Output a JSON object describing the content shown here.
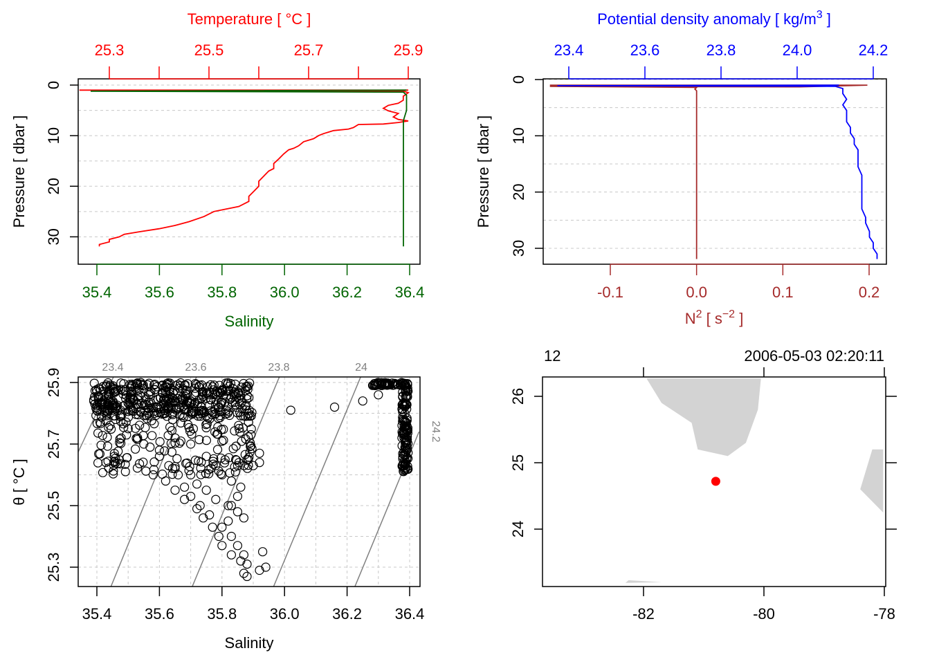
{
  "colors": {
    "temperature": "#ff0000",
    "salinity": "#006400",
    "density": "#0000ff",
    "n2": "#a52a2a",
    "axis": "#000000",
    "grid": "#c8c8c8",
    "isopycnal": "#808080",
    "land": "#d3d3d3",
    "station": "#ff0000"
  },
  "chart_data": [
    {
      "type": "line",
      "id": "ts-profile",
      "top_axis_label": "Temperature [ °C ]",
      "top_ticks": [
        "25.3",
        "25.5",
        "25.7",
        "25.9"
      ],
      "top_ticks_values": [
        25.3,
        25.5,
        25.7,
        25.9
      ],
      "top_range": [
        25.22,
        25.91
      ],
      "bottom_axis_label": "Salinity",
      "bottom_ticks": [
        "35.4",
        "35.6",
        "35.8",
        "36.0",
        "36.2",
        "36.4"
      ],
      "bottom_ticks_values": [
        35.4,
        35.6,
        35.8,
        36.0,
        36.2,
        36.4
      ],
      "bottom_range": [
        35.34,
        36.42
      ],
      "ylabel": "Pressure [ dbar ]",
      "y_ticks": [
        "0",
        "10",
        "20",
        "30"
      ],
      "y_ticks_values": [
        0,
        10,
        20,
        30
      ],
      "ylim": [
        33.5,
        0
      ],
      "grid": true,
      "series": [
        {
          "color_key": "temperature",
          "points": [
            [
              25.9,
              1.0
            ],
            [
              25.9,
              1.0
            ],
            [
              25.24,
              1.0
            ],
            [
              25.89,
              1.2
            ],
            [
              25.9,
              1.5
            ],
            [
              25.89,
              2.2
            ],
            [
              25.89,
              3.0
            ],
            [
              25.88,
              3.6
            ],
            [
              25.86,
              4.0
            ],
            [
              25.85,
              4.6
            ],
            [
              25.86,
              5.1
            ],
            [
              25.88,
              5.6
            ],
            [
              25.87,
              6.3
            ],
            [
              25.88,
              6.8
            ],
            [
              25.9,
              7.1
            ],
            [
              25.88,
              7.4
            ],
            [
              25.85,
              7.7
            ],
            [
              25.8,
              7.8
            ],
            [
              25.79,
              8.4
            ],
            [
              25.78,
              8.7
            ],
            [
              25.75,
              9.0
            ],
            [
              25.74,
              9.3
            ],
            [
              25.73,
              9.6
            ],
            [
              25.72,
              10.0
            ],
            [
              25.71,
              10.6
            ],
            [
              25.69,
              11.2
            ],
            [
              25.68,
              12.0
            ],
            [
              25.67,
              12.5
            ],
            [
              25.66,
              12.8
            ],
            [
              25.65,
              13.6
            ],
            [
              25.64,
              14.6
            ],
            [
              25.63,
              15.5
            ],
            [
              25.63,
              16.5
            ],
            [
              25.62,
              17.0
            ],
            [
              25.61,
              18.0
            ],
            [
              25.6,
              19.0
            ],
            [
              25.6,
              20.0
            ],
            [
              25.59,
              21.0
            ],
            [
              25.58,
              22.0
            ],
            [
              25.58,
              23.0
            ],
            [
              25.56,
              24.0
            ],
            [
              25.53,
              24.6
            ],
            [
              25.51,
              25.0
            ],
            [
              25.49,
              26.0
            ],
            [
              25.46,
              27.0
            ],
            [
              25.43,
              27.8
            ],
            [
              25.4,
              28.4
            ],
            [
              25.36,
              29.0
            ],
            [
              25.33,
              29.5
            ],
            [
              25.32,
              30.0
            ],
            [
              25.3,
              30.5
            ],
            [
              25.3,
              31.0
            ],
            [
              25.28,
              31.5
            ],
            [
              25.28,
              31.9
            ]
          ]
        },
        {
          "color_key": "salinity",
          "points": [
            [
              36.39,
              1.0
            ],
            [
              36.38,
              1.0
            ],
            [
              35.38,
              1.2
            ],
            [
              36.38,
              1.4
            ],
            [
              36.39,
              2.0
            ],
            [
              36.39,
              3.0
            ],
            [
              36.39,
              5.0
            ],
            [
              36.38,
              7.0
            ],
            [
              36.38,
              10.0
            ],
            [
              36.38,
              15.0
            ],
            [
              36.38,
              20.0
            ],
            [
              36.38,
              25.0
            ],
            [
              36.38,
              30.0
            ],
            [
              36.38,
              31.9
            ]
          ]
        }
      ]
    },
    {
      "type": "line",
      "id": "density-n2-profile",
      "top_axis_label": "Potential density anomaly [ kg/m",
      "top_axis_label_sup": "3",
      "top_axis_label_end": " ]",
      "top_ticks": [
        "23.4",
        "23.6",
        "23.8",
        "24.0",
        "24.2"
      ],
      "top_ticks_values": [
        23.4,
        23.6,
        23.8,
        24.0,
        24.2
      ],
      "top_range": [
        23.36,
        24.21
      ],
      "bottom_axis_label": "N",
      "bottom_axis_label_sup": "2",
      "bottom_axis_label_mid": " [ s",
      "bottom_axis_label_sup2": "−2",
      "bottom_axis_label_end": " ]",
      "bottom_ticks": [
        "-0.1",
        "0.0",
        "0.1",
        "0.2"
      ],
      "bottom_ticks_values": [
        -0.1,
        0.0,
        0.1,
        0.2
      ],
      "bottom_range": [
        -0.18,
        0.22
      ],
      "ylabel": "Pressure [ dbar ]",
      "y_ticks": [
        "0",
        "10",
        "20",
        "30"
      ],
      "y_ticks_values": [
        0,
        10,
        20,
        30
      ],
      "ylim": [
        33.5,
        0
      ],
      "grid": true,
      "series": [
        {
          "color_key": "density",
          "points": [
            [
              24.11,
              1.0
            ],
            [
              24.1,
              1.0
            ],
            [
              23.37,
              1.1
            ],
            [
              24.1,
              1.2
            ],
            [
              24.12,
              1.6
            ],
            [
              24.12,
              2.5
            ],
            [
              24.13,
              3.5
            ],
            [
              24.12,
              4.5
            ],
            [
              24.13,
              5.5
            ],
            [
              24.13,
              6.5
            ],
            [
              24.13,
              7.5
            ],
            [
              24.14,
              8.5
            ],
            [
              24.14,
              9.5
            ],
            [
              24.15,
              10.5
            ],
            [
              24.15,
              11.5
            ],
            [
              24.16,
              12.5
            ],
            [
              24.16,
              14.0
            ],
            [
              24.16,
              15.5
            ],
            [
              24.17,
              17.0
            ],
            [
              24.17,
              18.5
            ],
            [
              24.17,
              20.0
            ],
            [
              24.17,
              21.5
            ],
            [
              24.17,
              23.0
            ],
            [
              24.18,
              24.5
            ],
            [
              24.18,
              25.5
            ],
            [
              24.19,
              27.0
            ],
            [
              24.19,
              28.0
            ],
            [
              24.2,
              29.0
            ],
            [
              24.2,
              30.0
            ],
            [
              24.21,
              31.0
            ],
            [
              24.21,
              31.9
            ]
          ]
        },
        {
          "color_key": "n2",
          "points": [
            [
              0.198,
              1.0
            ],
            [
              -0.17,
              1.0
            ],
            [
              0.198,
              1.0
            ],
            [
              0.12,
              1.3
            ],
            [
              -0.17,
              1.2
            ],
            [
              0.0,
              1.4
            ],
            [
              -0.002,
              1.7
            ],
            [
              0.0,
              2.0
            ],
            [
              0.0,
              5.0
            ],
            [
              0.0,
              10.0
            ],
            [
              0.0,
              20.0
            ],
            [
              0.0,
              31.9
            ]
          ]
        }
      ]
    },
    {
      "type": "scatter",
      "id": "ts-diagram",
      "xlabel": "Salinity",
      "x_ticks": [
        "35.4",
        "35.6",
        "35.8",
        "36.0",
        "36.2",
        "36.4"
      ],
      "x_ticks_values": [
        35.4,
        35.6,
        35.8,
        36.0,
        36.2,
        36.4
      ],
      "xlim": [
        35.33,
        36.43
      ],
      "ylabel": "θ [ °C ]",
      "y_ticks": [
        "25.3",
        "25.5",
        "25.7",
        "25.9"
      ],
      "y_ticks_values": [
        25.3,
        25.5,
        25.7,
        25.9
      ],
      "ylim": [
        25.237,
        25.922
      ],
      "grid": true,
      "isopycnals": [
        {
          "label": "23.4",
          "points": [
            [
              35.33,
              25.652
            ],
            [
              35.455,
              25.922
            ]
          ]
        },
        {
          "label": "23.6",
          "points": [
            [
              35.445,
              25.237
            ],
            [
              35.72,
              25.922
            ]
          ]
        },
        {
          "label": "23.8",
          "points": [
            [
              35.705,
              25.237
            ],
            [
              35.985,
              25.922
            ]
          ]
        },
        {
          "label": "24",
          "points": [
            [
              35.965,
              25.237
            ],
            [
              36.245,
              25.922
            ]
          ]
        },
        {
          "label": "24.2",
          "points": [
            [
              36.225,
              25.237
            ],
            [
              36.43,
              25.74
            ]
          ]
        }
      ],
      "point_groups": [
        {
          "x_range": [
            35.39,
            35.9
          ],
          "y_range": [
            25.79,
            25.9
          ],
          "count": 420
        },
        {
          "x_range": [
            35.4,
            35.9
          ],
          "y_range": [
            25.6,
            25.8
          ],
          "count": 160
        },
        {
          "x_range": [
            36.28,
            36.395
          ],
          "y_range": [
            25.89,
            25.9
          ],
          "count": 60
        },
        {
          "x_range": [
            36.375,
            36.395
          ],
          "y_range": [
            25.61,
            25.89
          ],
          "count": 120
        }
      ],
      "points": [
        [
          35.4,
          25.87
        ],
        [
          35.42,
          25.84
        ],
        [
          35.44,
          25.81
        ],
        [
          35.46,
          25.78
        ],
        [
          35.5,
          25.75
        ],
        [
          35.53,
          25.72
        ],
        [
          35.57,
          25.69
        ],
        [
          35.6,
          25.66
        ],
        [
          35.63,
          25.63
        ],
        [
          35.66,
          25.6
        ],
        [
          35.68,
          25.56
        ],
        [
          35.7,
          25.53
        ],
        [
          35.73,
          25.5
        ],
        [
          35.76,
          25.47
        ],
        [
          35.8,
          25.43
        ],
        [
          35.83,
          25.4
        ],
        [
          35.85,
          25.37
        ],
        [
          35.87,
          25.34
        ],
        [
          35.88,
          25.31
        ],
        [
          35.87,
          25.28
        ],
        [
          35.88,
          25.27
        ],
        [
          35.92,
          25.29
        ],
        [
          35.94,
          25.3
        ],
        [
          35.93,
          25.35
        ],
        [
          35.58,
          25.6
        ],
        [
          35.62,
          25.58
        ],
        [
          35.65,
          25.55
        ],
        [
          35.68,
          25.52
        ],
        [
          35.72,
          25.49
        ],
        [
          35.74,
          25.46
        ],
        [
          35.77,
          25.43
        ],
        [
          35.79,
          25.4
        ],
        [
          35.8,
          25.37
        ],
        [
          35.83,
          25.34
        ],
        [
          35.86,
          25.32
        ],
        [
          35.55,
          25.7
        ],
        [
          35.6,
          25.68
        ],
        [
          35.65,
          25.62
        ],
        [
          35.7,
          25.6
        ],
        [
          35.72,
          25.57
        ],
        [
          35.75,
          25.55
        ],
        [
          35.78,
          25.52
        ],
        [
          35.82,
          25.5
        ],
        [
          35.85,
          25.48
        ],
        [
          35.87,
          25.46
        ],
        [
          35.65,
          25.72
        ],
        [
          35.7,
          25.7
        ],
        [
          35.75,
          25.66
        ],
        [
          35.78,
          25.63
        ],
        [
          35.8,
          25.6
        ],
        [
          35.83,
          25.58
        ],
        [
          35.86,
          25.56
        ],
        [
          35.85,
          25.53
        ],
        [
          35.83,
          25.5
        ],
        [
          35.82,
          25.45
        ],
        [
          35.85,
          25.63
        ],
        [
          35.88,
          25.65
        ],
        [
          35.9,
          25.63
        ],
        [
          35.92,
          25.67
        ],
        [
          35.92,
          25.64
        ],
        [
          36.02,
          25.81
        ],
        [
          36.16,
          25.82
        ],
        [
          36.25,
          25.84
        ],
        [
          36.3,
          25.86
        ]
      ],
      "annotations": [
        "23.4",
        "23.6",
        "23.8",
        "24",
        "24.2"
      ]
    },
    {
      "type": "map",
      "id": "station-map",
      "top_left_label": "12",
      "top_right_label": "2006-05-03 02:20:11",
      "x_ticks": [
        "-82",
        "-80",
        "-78"
      ],
      "x_ticks_values": [
        -82,
        -80,
        -78
      ],
      "xlim": [
        -83.65,
        -78.02
      ],
      "y_ticks": [
        "24",
        "25",
        "26"
      ],
      "y_ticks_values": [
        24,
        25,
        26
      ],
      "ylim": [
        23.19,
        26.27
      ],
      "land": [
        [
          [
            -81.95,
            26.27
          ],
          [
            -80.05,
            26.27
          ],
          [
            -80.1,
            25.8
          ],
          [
            -80.3,
            25.3
          ],
          [
            -80.6,
            25.1
          ],
          [
            -81.1,
            25.2
          ],
          [
            -81.2,
            25.6
          ],
          [
            -81.7,
            25.9
          ]
        ],
        [
          [
            -78.02,
            25.2
          ],
          [
            -78.2,
            25.2
          ],
          [
            -78.4,
            24.6
          ],
          [
            -78.02,
            24.25
          ]
        ],
        [
          [
            -82.3,
            23.19
          ],
          [
            -82.25,
            23.23
          ],
          [
            -81.7,
            23.2
          ]
        ]
      ],
      "station": {
        "lon": -80.8,
        "lat": 24.72
      }
    }
  ]
}
